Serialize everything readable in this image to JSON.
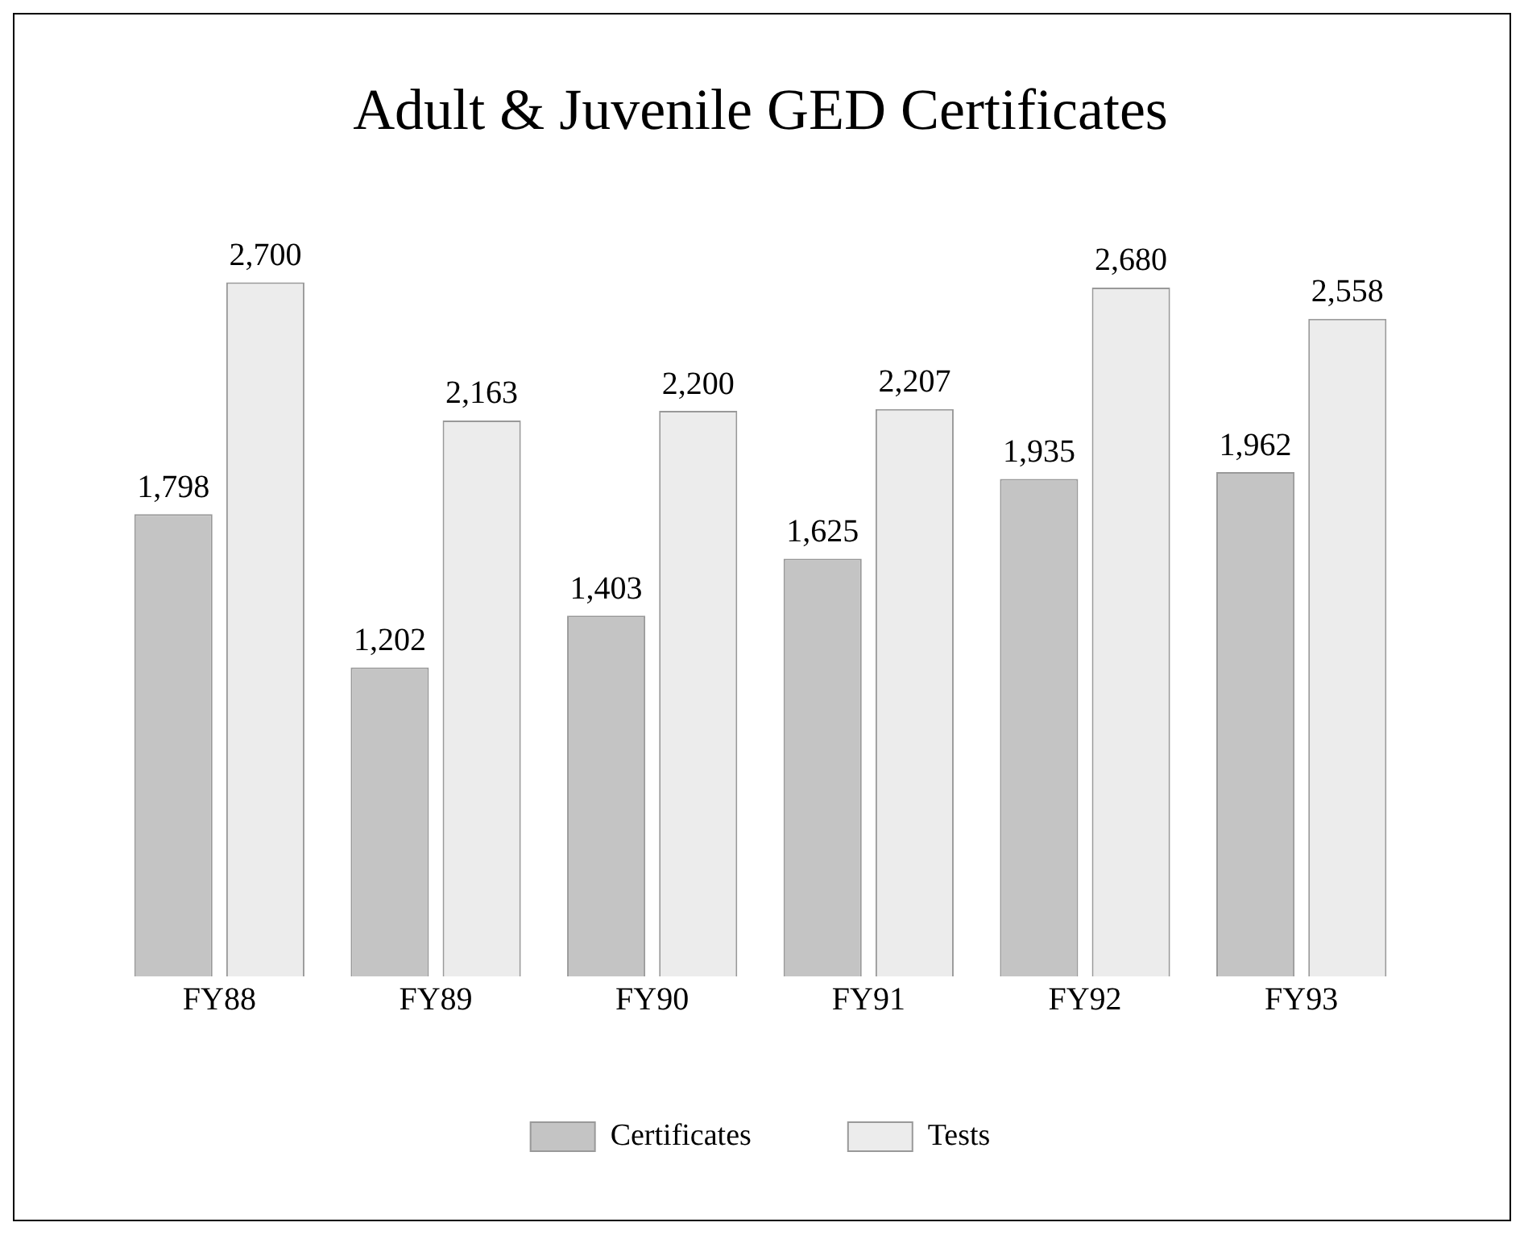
{
  "chart_data": {
    "type": "bar",
    "title": "Adult & Juvenile GED Certificates",
    "categories": [
      "FY88",
      "FY89",
      "FY90",
      "FY91",
      "FY92",
      "FY93"
    ],
    "series": [
      {
        "name": "Certificates",
        "color": "#c4c4c4",
        "values": [
          1798,
          1202,
          1403,
          1625,
          1935,
          1962
        ],
        "value_labels": [
          "1,798",
          "1,202",
          "1,403",
          "1,625",
          "1,935",
          "1,962"
        ]
      },
      {
        "name": "Tests",
        "color": "#ececec",
        "values": [
          2700,
          2163,
          2200,
          2207,
          2680,
          2558
        ],
        "value_labels": [
          "2,700",
          "2,163",
          "2,200",
          "2,207",
          "2,680",
          "2,558"
        ]
      }
    ],
    "legend": "bottom",
    "grid": false
  }
}
